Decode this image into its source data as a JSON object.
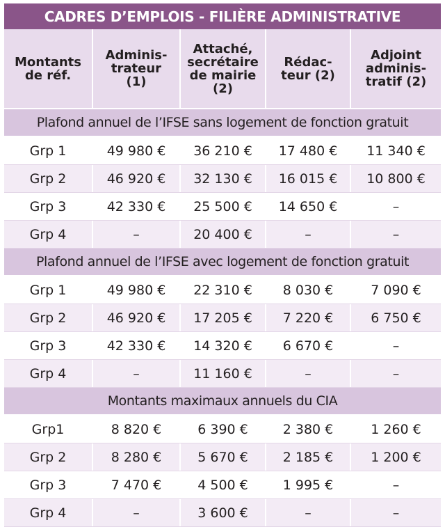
{
  "table": {
    "title": "CADRES D’EMPLOIS - FILIÈRE ADMINISTRATIVE",
    "headers": [
      [
        "Montants",
        "de réf."
      ],
      [
        "Adminis-",
        "trateur",
        "(1)"
      ],
      [
        "Attaché,",
        "secrétaire",
        "de mairie",
        "(2)"
      ],
      [
        "Rédac-",
        "teur (2)"
      ],
      [
        "Adjoint",
        "adminis-",
        "tratif (2)"
      ]
    ],
    "sections": [
      {
        "title": "Plafond annuel de l’IFSE sans logement de fonction gratuit",
        "rows": [
          [
            "Grp 1",
            "49 980 €",
            "36 210 €",
            "17 480 €",
            "11 340 €"
          ],
          [
            "Grp 2",
            "46 920 €",
            "32 130 €",
            "16 015 €",
            "10 800 €"
          ],
          [
            "Grp 3",
            "42 330 €",
            "25 500 €",
            "14 650 €",
            "–"
          ],
          [
            "Grp 4",
            "–",
            "20 400 €",
            "–",
            "–"
          ]
        ]
      },
      {
        "title": "Plafond annuel de l’IFSE avec logement de fonction gratuit",
        "rows": [
          [
            "Grp 1",
            "49 980 €",
            "22 310 €",
            "8 030 €",
            "7 090 €"
          ],
          [
            "Grp 2",
            "46 920 €",
            "17 205 €",
            "7 220 €",
            "6 750 €"
          ],
          [
            "Grp 3",
            "42 330 €",
            "14 320 €",
            "6 670 €",
            "–"
          ],
          [
            "Grp 4",
            "–",
            "11 160 €",
            "–",
            "–"
          ]
        ]
      },
      {
        "title": "Montants maximaux annuels du CIA",
        "rows": [
          [
            "Grp1",
            "8 820 €",
            "6 390 €",
            "2 380 €",
            "1 260 €"
          ],
          [
            "Grp 2",
            "8 280 €",
            "5 670 €",
            "2 185 €",
            "1 200 €"
          ],
          [
            "Grp 3",
            "7 470 €",
            "4 500 €",
            "1 995 €",
            "–"
          ],
          [
            "Grp 4",
            "–",
            "3 600 €",
            "–",
            "–"
          ]
        ]
      }
    ]
  }
}
